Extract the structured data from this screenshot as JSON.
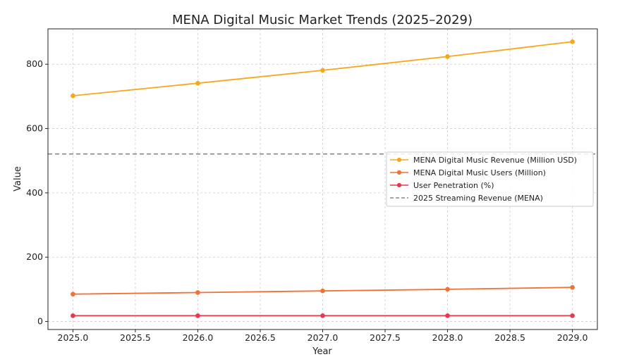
{
  "chart_data": {
    "type": "line",
    "title": "MENA Digital Music Market Trends (2025–2029)",
    "xlabel": "Year",
    "ylabel": "Value",
    "x": [
      2025,
      2026,
      2027,
      2028,
      2029
    ],
    "xticks": [
      "2025.0",
      "2025.5",
      "2026.0",
      "2026.5",
      "2027.0",
      "2027.5",
      "2028.0",
      "2028.5",
      "2029.0"
    ],
    "xtick_values": [
      2025.0,
      2025.5,
      2026.0,
      2026.5,
      2027.0,
      2027.5,
      2028.0,
      2028.5,
      2029.0
    ],
    "yticks": [
      "0",
      "200",
      "400",
      "600",
      "800"
    ],
    "ytick_values": [
      0,
      200,
      400,
      600,
      800
    ],
    "xlim": [
      2024.8,
      2029.2
    ],
    "ylim": [
      -25,
      910
    ],
    "grid": true,
    "legend_position": "center-right",
    "series": [
      {
        "name": "MENA Digital Music Revenue (Million USD)",
        "color": "#f5a81c",
        "values": [
          702,
          741,
          781,
          824,
          870
        ]
      },
      {
        "name": "MENA Digital Music Users (Million)",
        "color": "#ef7237",
        "values": [
          85,
          90,
          95,
          100,
          106
        ]
      },
      {
        "name": "User Penetration (%)",
        "color": "#e8384f",
        "values": [
          18,
          18,
          18,
          18,
          18
        ]
      }
    ],
    "reference_lines": [
      {
        "name": "2025 Streaming Revenue (MENA)",
        "color": "#888888",
        "value": 521,
        "style": "dashed"
      }
    ]
  }
}
